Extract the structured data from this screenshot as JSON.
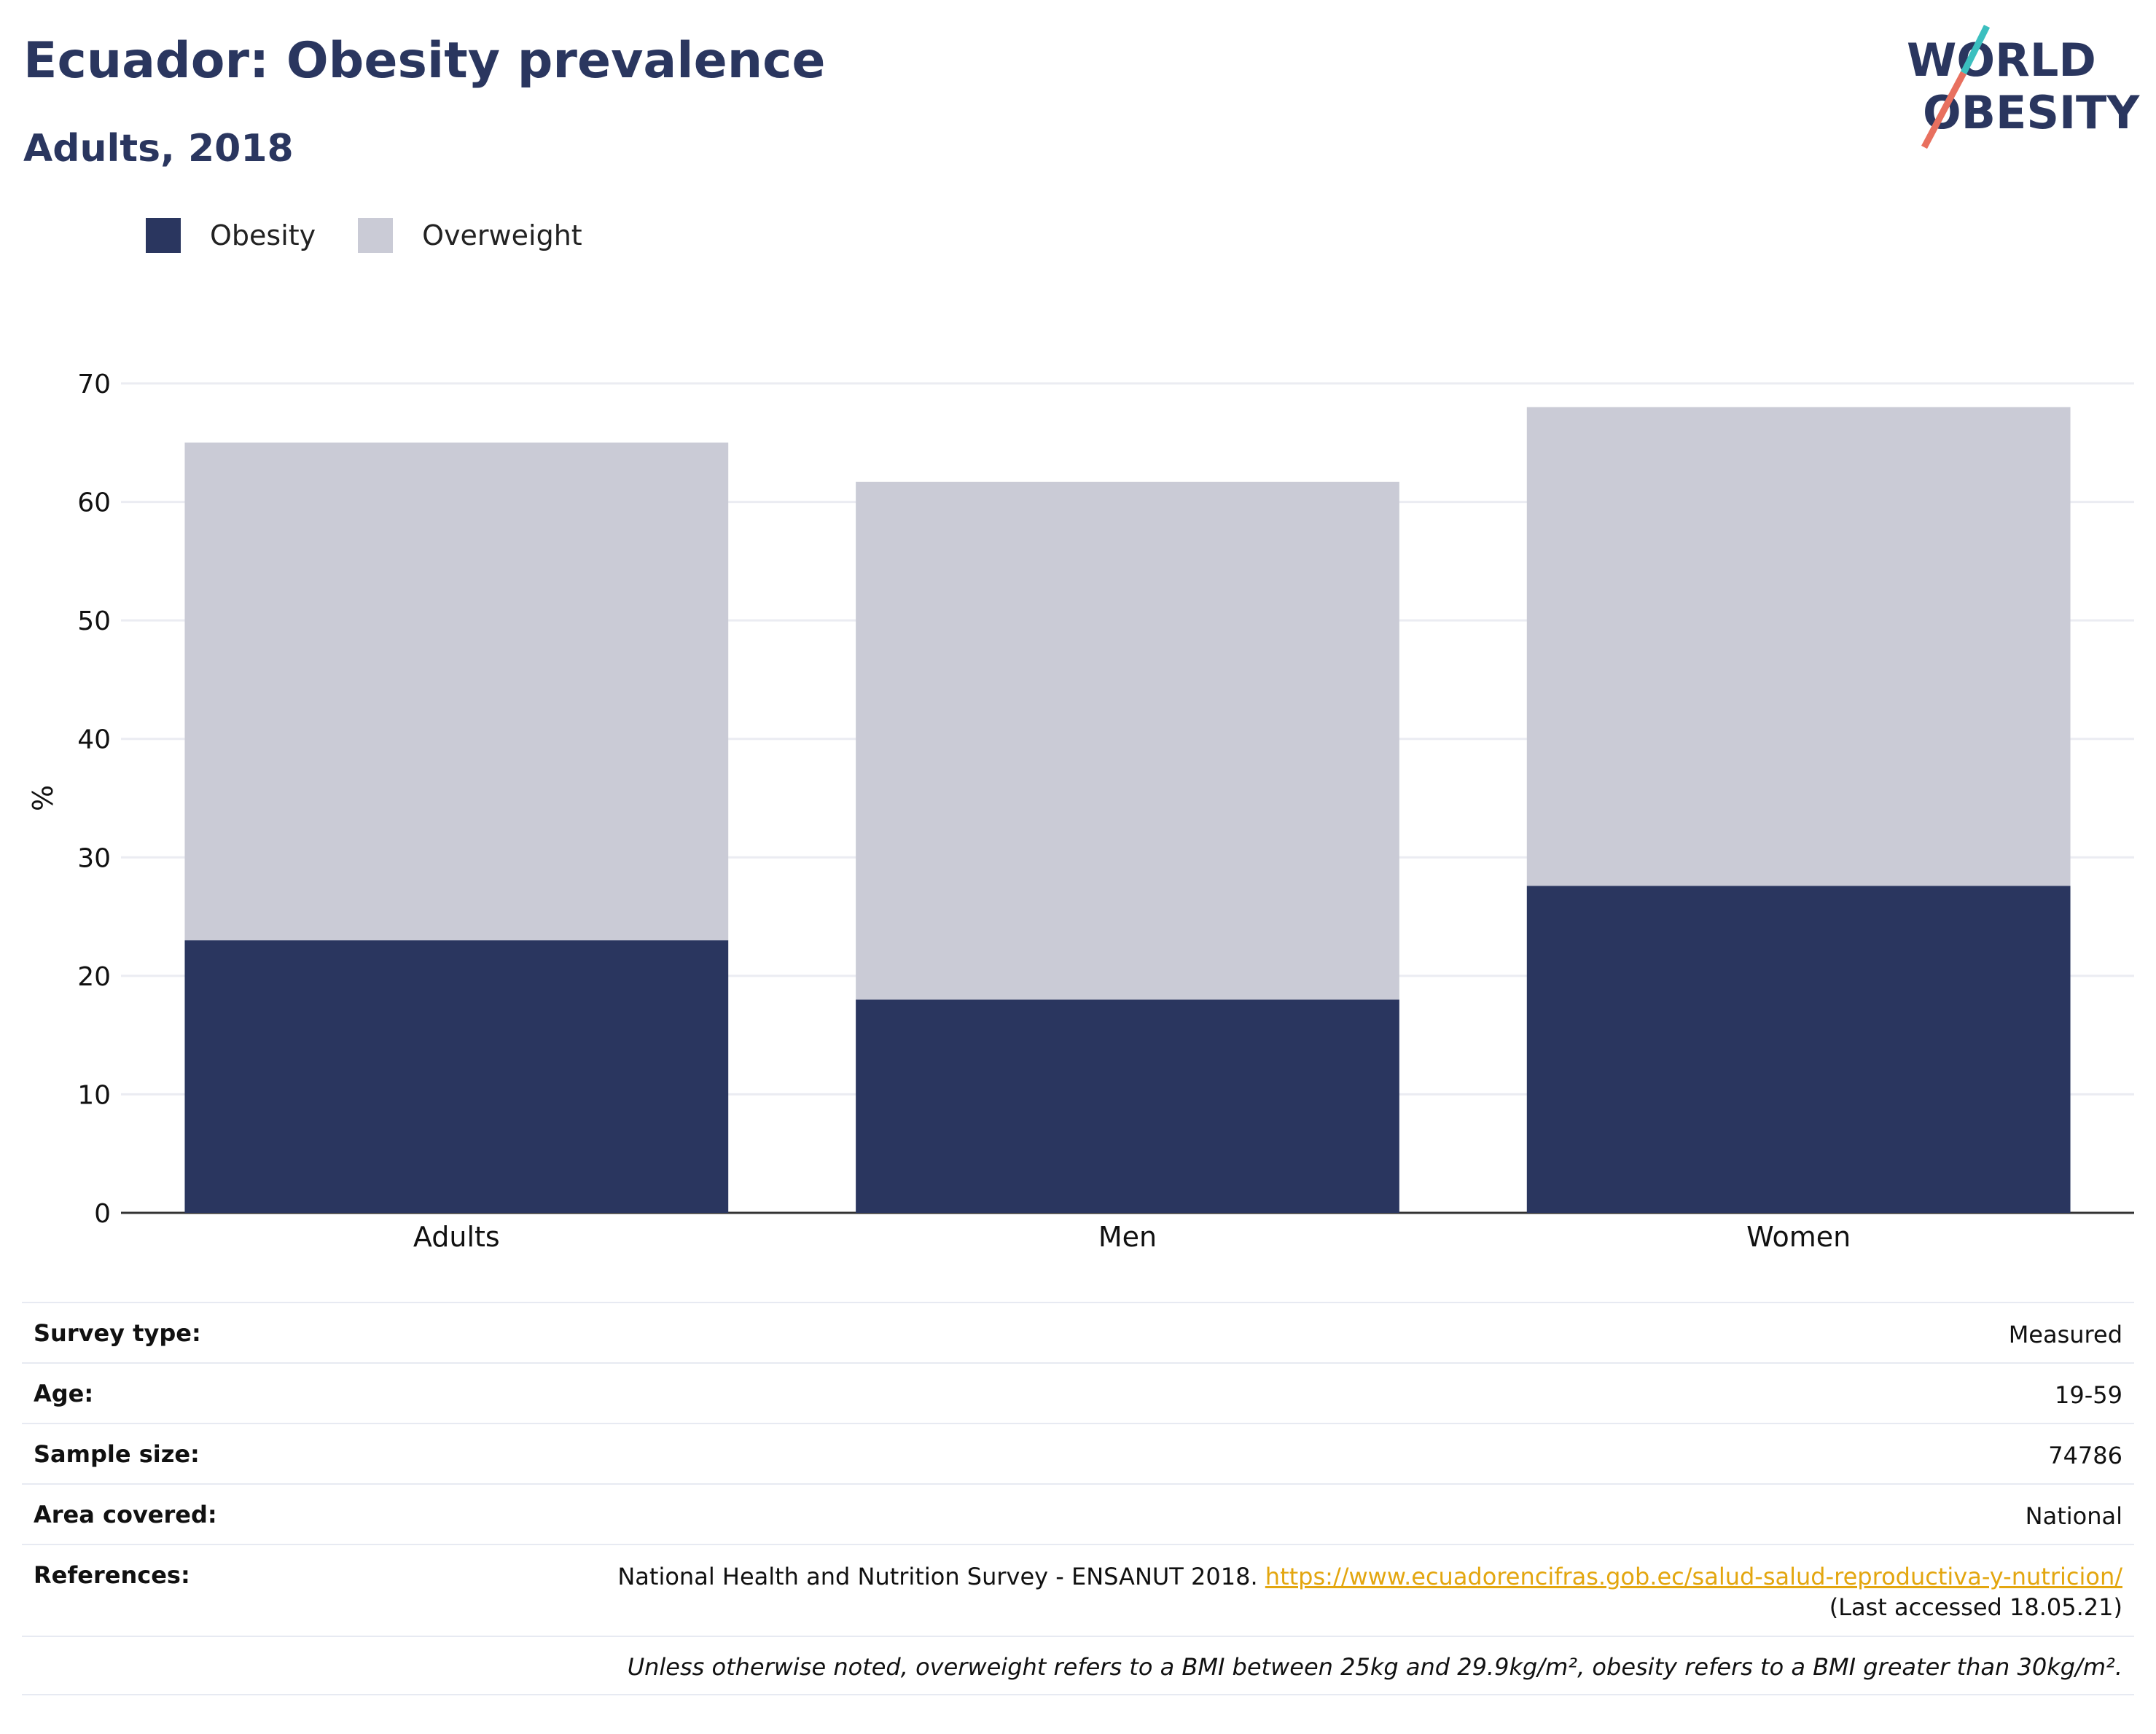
{
  "header": {
    "title": "Ecuador: Obesity prevalence",
    "subtitle": "Adults, 2018"
  },
  "logo": {
    "line1": "WORLD",
    "line2": "OBESITY",
    "accent_teal": "#3bbfbf",
    "accent_coral": "#e8705f"
  },
  "legend": {
    "items": [
      {
        "label": "Obesity",
        "color": "#2a365f"
      },
      {
        "label": "Overweight",
        "color": "#cacbd6"
      }
    ]
  },
  "chart_data": {
    "type": "bar",
    "stacked": true,
    "categories": [
      "Adults",
      "Men",
      "Women"
    ],
    "series": [
      {
        "name": "Obesity",
        "color": "#2a365f",
        "values": [
          23.0,
          18.0,
          27.6
        ]
      },
      {
        "name": "Overweight",
        "color": "#cacbd6",
        "values": [
          42.0,
          43.7,
          40.4
        ]
      }
    ],
    "ylabel": "%",
    "xlabel": "",
    "ylim": [
      0,
      70
    ],
    "yticks": [
      0,
      10,
      20,
      30,
      40,
      50,
      60,
      70
    ],
    "grid": true,
    "legend_position": "top-left"
  },
  "info": {
    "survey_type_label": "Survey type:",
    "survey_type_value": "Measured",
    "age_label": "Age:",
    "age_value": "19-59",
    "sample_size_label": "Sample size:",
    "sample_size_value": "74786",
    "area_label": "Area covered:",
    "area_value": "National",
    "references_label": "References:",
    "references_text": "National Health and Nutrition Survey - ENSANUT 2018.",
    "references_link": "https://www.ecuadorencifras.gob.ec/salud-salud-reproductiva-y-nutricion/",
    "references_accessed": "(Last accessed 18.05.21)",
    "footnote": "Unless otherwise noted, overweight refers to a BMI between 25kg and 29.9kg/m², obesity refers to a BMI greater than 30kg/m²."
  }
}
